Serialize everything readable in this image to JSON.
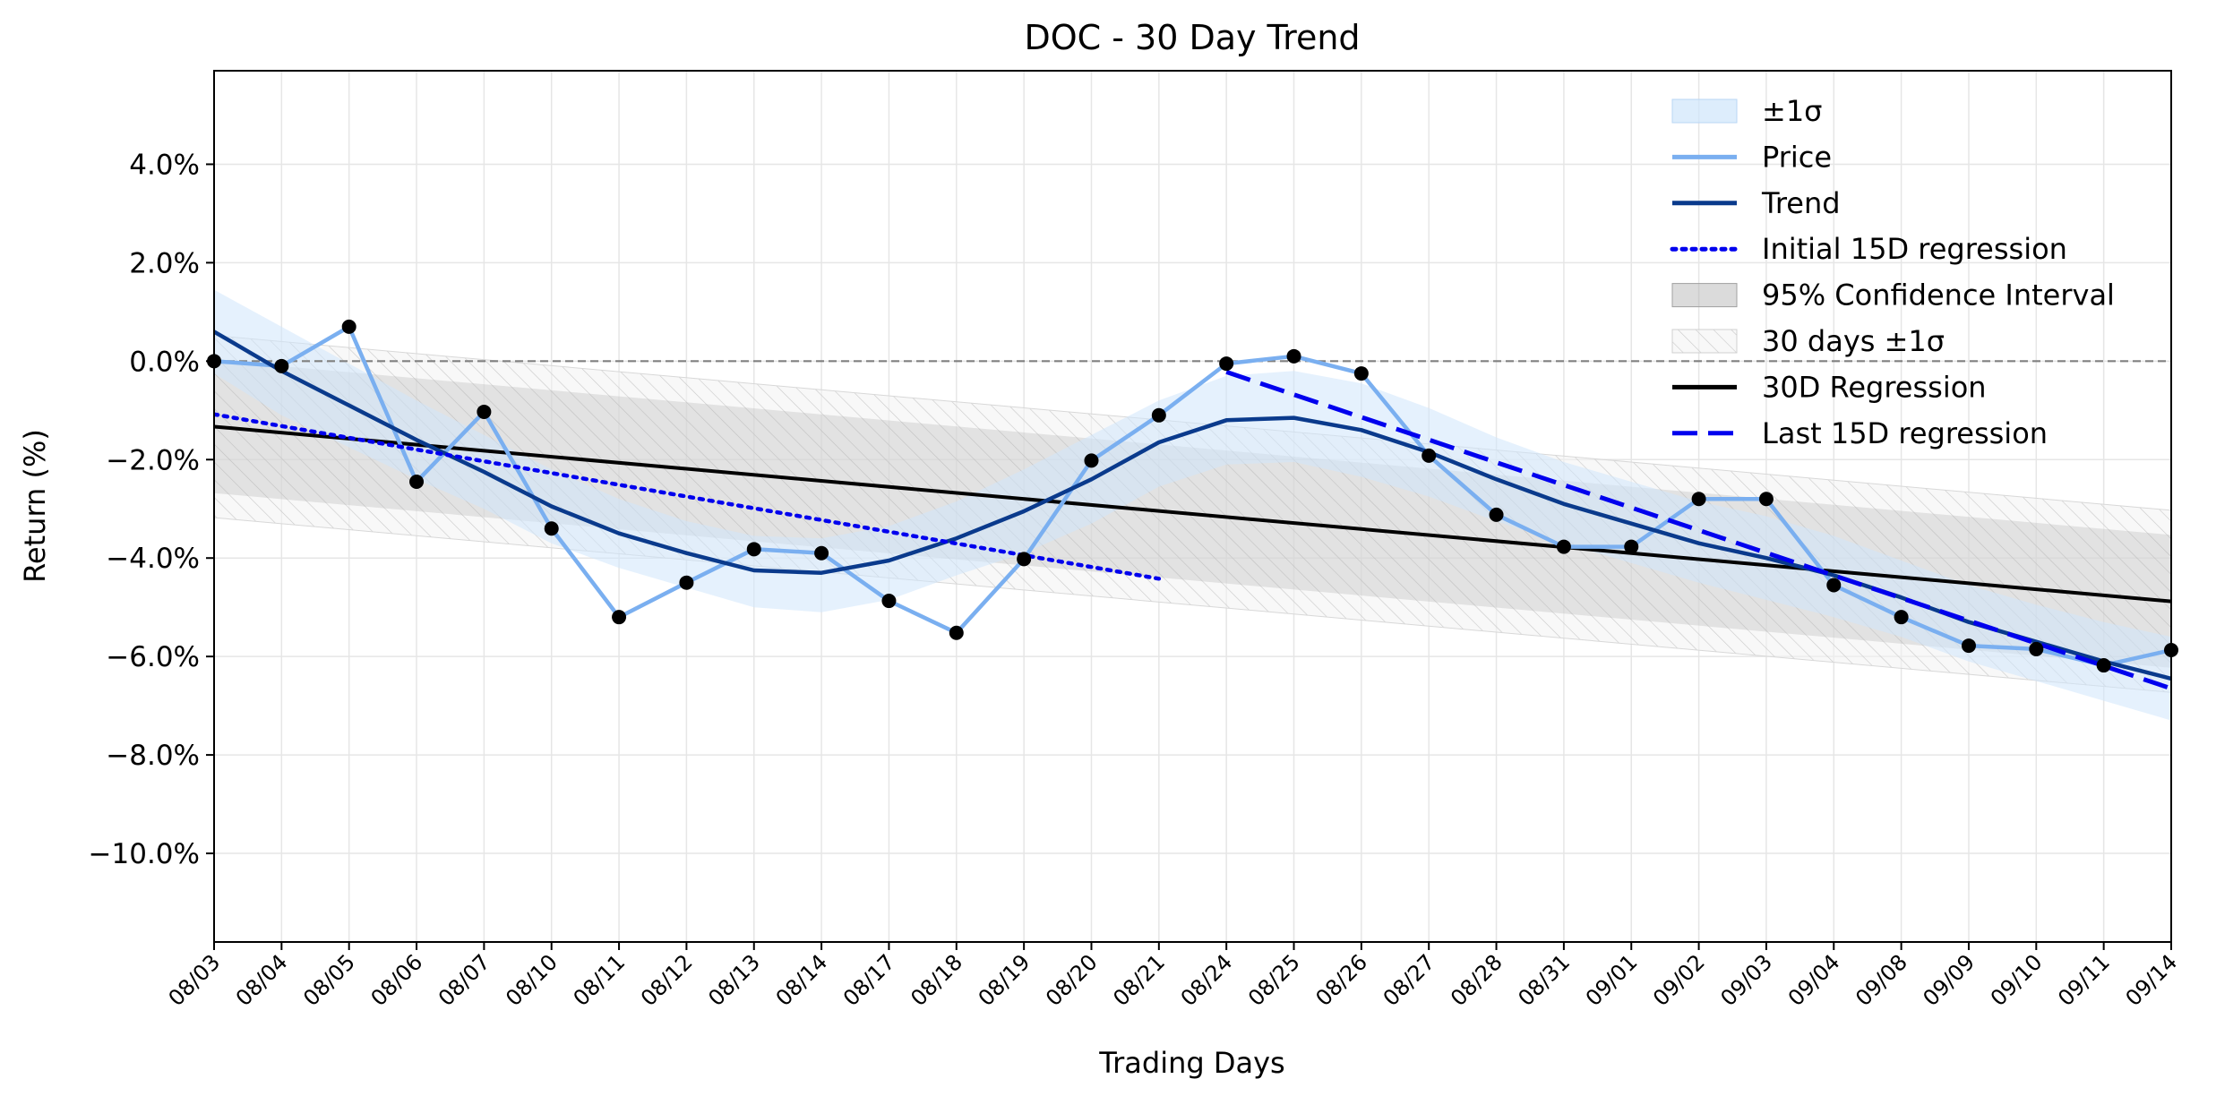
{
  "chart_data": {
    "type": "line",
    "title": "DOC - 30 Day Trend",
    "xlabel": "Trading Days",
    "ylabel": "Return (%)",
    "x": [
      "08/03",
      "08/04",
      "08/05",
      "08/06",
      "08/07",
      "08/10",
      "08/11",
      "08/12",
      "08/13",
      "08/14",
      "08/17",
      "08/18",
      "08/19",
      "08/20",
      "08/21",
      "08/24",
      "08/25",
      "08/26",
      "08/27",
      "08/28",
      "08/31",
      "09/01",
      "09/02",
      "09/03",
      "09/04",
      "09/08",
      "09/09",
      "09/10",
      "09/11",
      "09/14"
    ],
    "ylim": [
      -11.8,
      5.9
    ],
    "yticks": [
      4.0,
      2.0,
      0.0,
      -2.0,
      -4.0,
      -6.0,
      -8.0,
      -10.0
    ],
    "ytick_labels": [
      "4.0%",
      "2.0%",
      "0.0%",
      "−2.0%",
      "−4.0%",
      "−6.0%",
      "−8.0%",
      "−10.0%"
    ],
    "grid": true,
    "legend_position": "top-right",
    "zero_line": 0.0,
    "series": [
      {
        "name": "Price",
        "color": "#7aaff0",
        "values": [
          0.0,
          -0.1,
          0.7,
          -2.45,
          -1.03,
          -3.4,
          -5.2,
          -4.5,
          -3.82,
          -3.9,
          -4.87,
          -5.52,
          -4.02,
          -2.02,
          -1.1,
          -0.05,
          0.1,
          -0.25,
          -1.92,
          -3.12,
          -3.77,
          -3.77,
          -2.8,
          -2.8,
          -4.55,
          -5.2,
          -5.78,
          -5.85,
          -6.18,
          -5.87
        ]
      },
      {
        "name": "Trend",
        "color": "#0a3a8c",
        "values": [
          0.6,
          -0.2,
          -0.9,
          -1.6,
          -2.25,
          -2.95,
          -3.5,
          -3.9,
          -4.25,
          -4.3,
          -4.05,
          -3.6,
          -3.05,
          -2.4,
          -1.65,
          -1.2,
          -1.15,
          -1.4,
          -1.85,
          -2.4,
          -2.9,
          -3.3,
          -3.7,
          -4.0,
          -4.35,
          -4.8,
          -5.3,
          -5.7,
          -6.1,
          -6.45
        ]
      },
      {
        "name": "±1σ",
        "color": "#ddeefc",
        "upper": [
          1.45,
          0.7,
          -0.05,
          -0.8,
          -1.5,
          -2.2,
          -2.8,
          -3.25,
          -3.55,
          -3.6,
          -3.35,
          -2.85,
          -2.2,
          -1.5,
          -0.8,
          -0.3,
          -0.2,
          -0.45,
          -0.95,
          -1.55,
          -2.05,
          -2.45,
          -2.85,
          -3.15,
          -3.55,
          -4.05,
          -4.55,
          -4.95,
          -5.3,
          -5.6
        ],
        "lower": [
          -0.25,
          -1.1,
          -1.75,
          -2.4,
          -3.0,
          -3.7,
          -4.2,
          -4.6,
          -5.0,
          -5.1,
          -4.85,
          -4.35,
          -3.9,
          -3.3,
          -2.55,
          -2.1,
          -2.05,
          -2.35,
          -2.75,
          -3.25,
          -3.7,
          -4.1,
          -4.5,
          -4.85,
          -5.2,
          -5.6,
          -6.1,
          -6.5,
          -6.9,
          -7.3
        ]
      },
      {
        "name": "Initial 15D regression",
        "color": "#0000ee",
        "x_start": "08/03",
        "x_end": "08/21",
        "y_start": -1.08,
        "y_end": -4.42
      },
      {
        "name": "Last 15D regression",
        "color": "#0000ee",
        "x_start": "08/24",
        "x_end": "09/14",
        "y_start": -0.22,
        "y_end": -6.65
      },
      {
        "name": "30D Regression",
        "color": "#000000",
        "x_start": "08/03",
        "x_end": "09/14",
        "y_start": -1.33,
        "y_end": -4.88
      },
      {
        "name": "95% Confidence Interval",
        "color": "#bbbbbb",
        "half_width": 1.35
      },
      {
        "name": "30 days ±1σ",
        "color": "#cccccc",
        "half_width": 1.85
      }
    ],
    "legend": [
      "±1σ",
      "Price",
      "Trend",
      "Initial 15D regression",
      "95% Confidence Interval",
      "30 days ±1σ",
      "30D Regression",
      "Last 15D regression"
    ]
  }
}
